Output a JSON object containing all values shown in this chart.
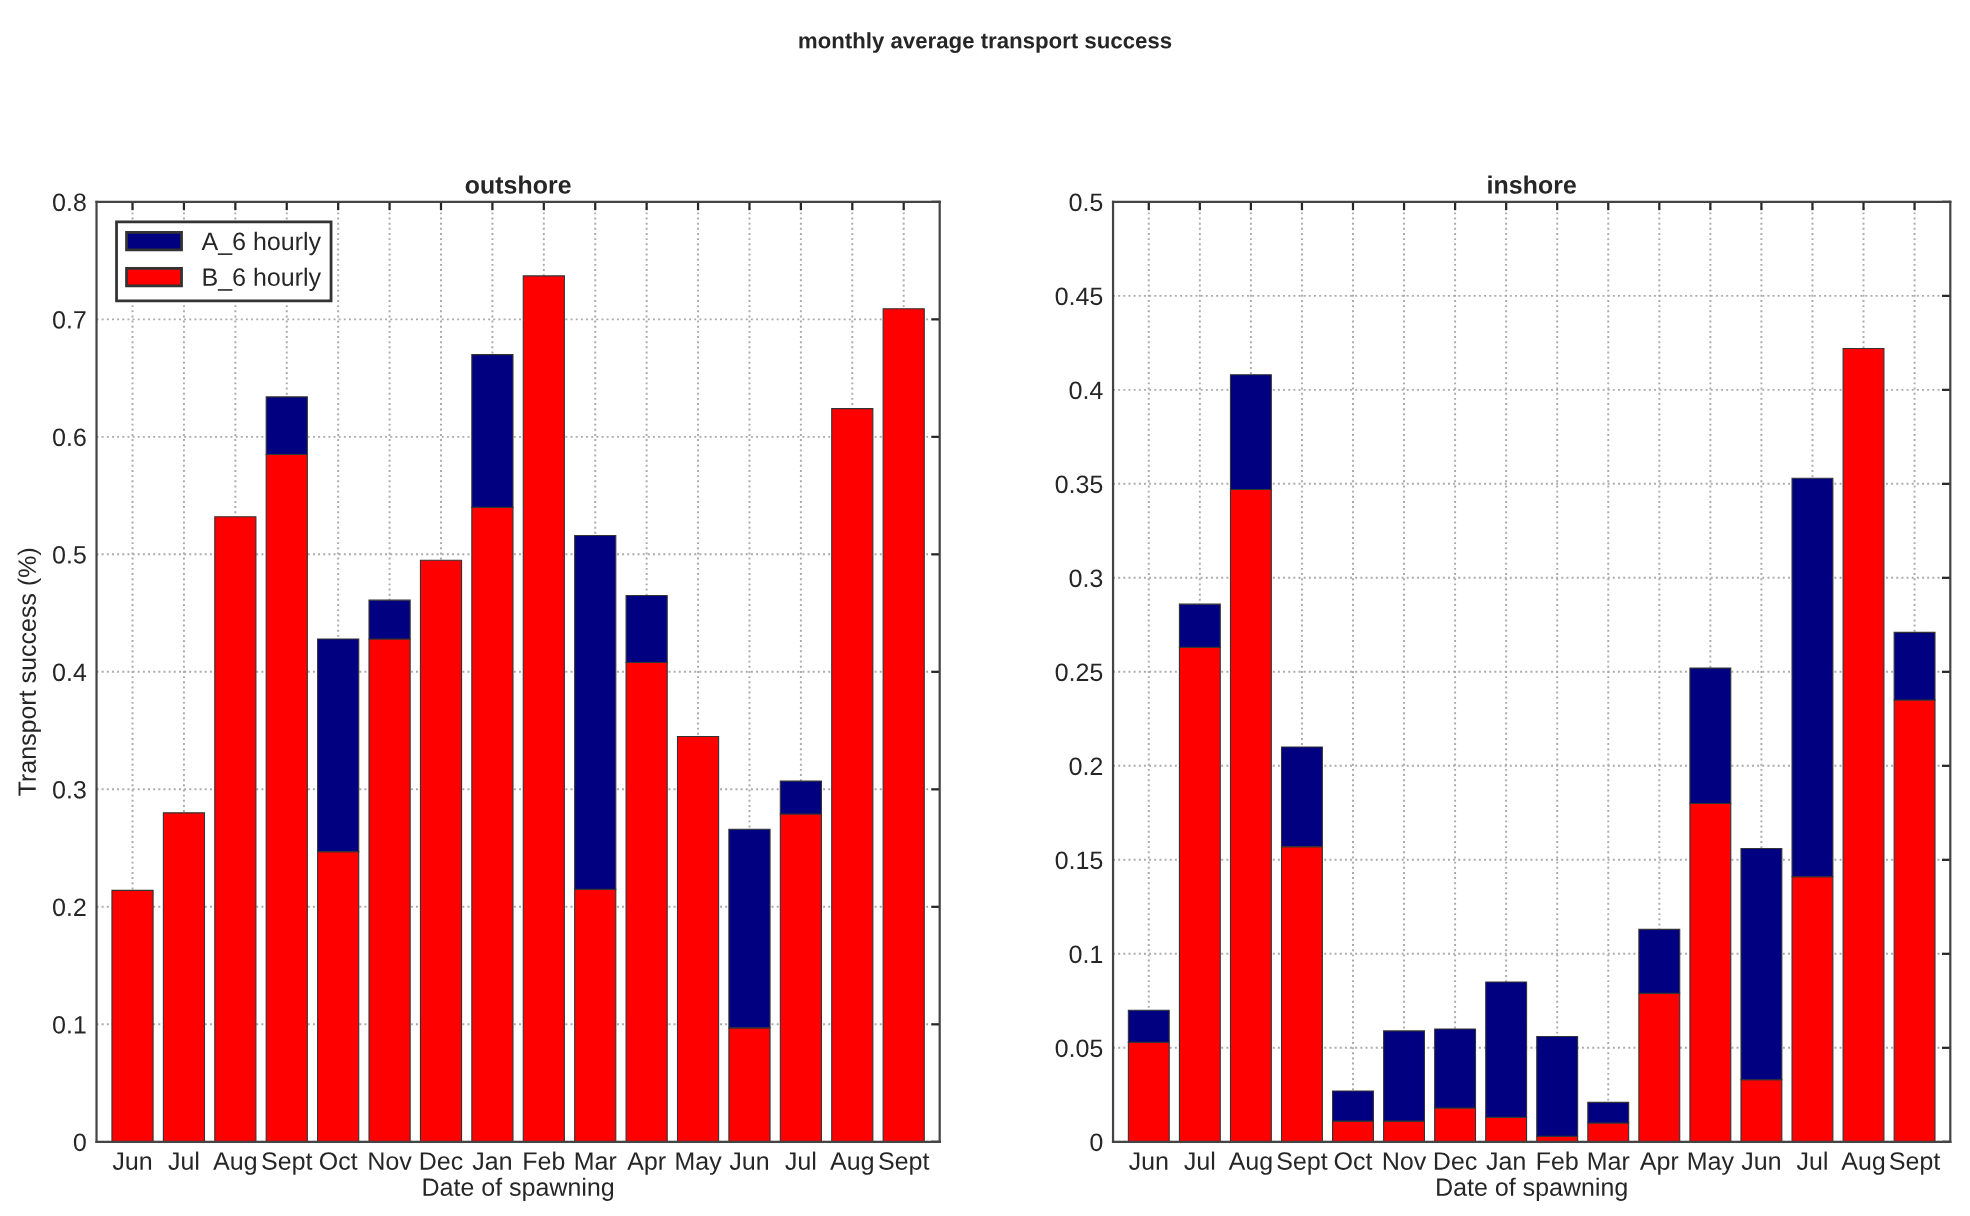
{
  "chart_data": [
    {
      "type": "bar",
      "title": "outshore",
      "xlabel": "Date of spawning",
      "ylabel": "Transport success (%)",
      "stacked": true,
      "categories": [
        "Jun",
        "Jul",
        "Aug",
        "Sept",
        "Oct",
        "Nov",
        "Dec",
        "Jan",
        "Feb",
        "Mar",
        "Apr",
        "May",
        "Jun",
        "Jul",
        "Aug",
        "Sept"
      ],
      "series": [
        {
          "name": "B_6 hourly",
          "color": "#ff0000",
          "values": [
            0.214,
            0.28,
            0.532,
            0.585,
            0.247,
            0.428,
            0.495,
            0.54,
            0.737,
            0.215,
            0.408,
            0.345,
            0.097,
            0.279,
            0.624,
            0.709
          ]
        },
        {
          "name": "A_6 hourly",
          "color": "#000080",
          "values": [
            null,
            null,
            null,
            0.049,
            0.181,
            0.033,
            null,
            0.13,
            null,
            0.301,
            0.057,
            null,
            0.169,
            0.028,
            null,
            null
          ]
        }
      ],
      "ylim": [
        0,
        0.8
      ],
      "yticks": [
        0,
        0.1,
        0.2,
        0.3,
        0.4,
        0.5,
        0.6,
        0.7,
        0.8
      ],
      "grid": true,
      "legend": "top left"
    },
    {
      "type": "bar",
      "title": "inshore",
      "xlabel": "Date of spawning",
      "annotations": [
        "monthly average transport success"
      ],
      "stacked": true,
      "categories": [
        "Jun",
        "Jul",
        "Aug",
        "Sept",
        "Oct",
        "Nov",
        "Dec",
        "Jan",
        "Feb",
        "Mar",
        "Apr",
        "May",
        "Jun",
        "Jul",
        "Aug",
        "Sept"
      ],
      "series": [
        {
          "color": "#ff0000",
          "values": [
            0.053,
            0.263,
            0.347,
            0.157,
            0.011,
            0.011,
            0.018,
            0.013,
            0.003,
            0.01,
            0.079,
            0.18,
            0.033,
            0.141,
            0.422,
            0.235
          ]
        },
        {
          "color": "#000080",
          "values": [
            0.017,
            0.023,
            0.061,
            0.053,
            0.016,
            0.048,
            0.042,
            0.072,
            0.053,
            0.011,
            0.034,
            0.072,
            0.123,
            0.212,
            null,
            0.036
          ]
        }
      ],
      "ylim": [
        0,
        0.5
      ],
      "yticks": [
        0,
        0.05,
        0.1,
        0.15,
        0.2,
        0.25,
        0.3,
        0.35,
        0.4,
        0.45,
        0.5
      ],
      "grid": true,
      "legend": false
    }
  ]
}
